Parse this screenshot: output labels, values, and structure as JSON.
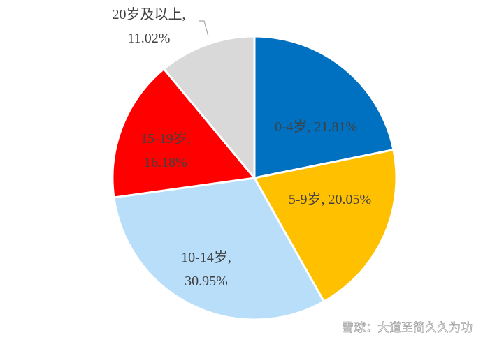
{
  "chart_data": {
    "type": "pie",
    "categories": [
      "0-4岁,",
      "5-9岁,",
      "10-14岁,",
      "15-19岁,",
      "20岁及以上,"
    ],
    "values": [
      21.81,
      20.05,
      30.95,
      16.18,
      11.02
    ],
    "value_labels": [
      "21.81%",
      "20.05%",
      "30.95%",
      "16.18%",
      "11.02%"
    ],
    "colors": [
      "#0070c0",
      "#ffc000",
      "#b8defa",
      "#ff0000",
      "#d9d9d9"
    ]
  },
  "watermark": "雪球：大道至简久久为功"
}
